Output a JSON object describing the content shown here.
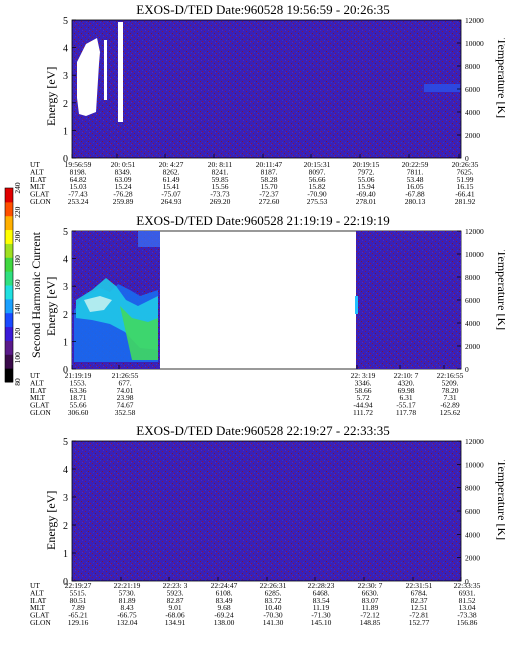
{
  "chart_data": {
    "type": "heatmap",
    "colorbar": {
      "label": "Second Harmonic Current",
      "ticks": [
        "80",
        "100",
        "120",
        "140",
        "160",
        "180",
        "200",
        "220",
        "240"
      ],
      "range": [
        80,
        240
      ],
      "colors": [
        "#000000",
        "#3a0a4a",
        "#5a1a8a",
        "#3a1ad8",
        "#1a4aff",
        "#1aa0ff",
        "#20e0e0",
        "#30e080",
        "#40d840",
        "#a0e020",
        "#ffff00",
        "#ffb000",
        "#ff5000",
        "#e00000"
      ]
    },
    "panels": [
      {
        "title": "EXOS-D/TED   Date:960528   19:56:59 - 20:26:35",
        "ylabel": "Energy [eV]",
        "ylabel_right": "Temperature [K]",
        "yticks": [
          "0",
          "1",
          "2",
          "3",
          "4",
          "5"
        ],
        "yticks_right": [
          "0",
          "2000",
          "4000",
          "6000",
          "8000",
          "10000",
          "12000"
        ],
        "ylim": [
          0,
          5
        ],
        "ylim_right": [
          0,
          12000
        ],
        "ephemeris_labels": [
          "UT",
          "ALT",
          "ILAT",
          "MLT",
          "GLAT",
          "GLON"
        ],
        "columns": [
          [
            "19:56:59",
            "8198.",
            "64.82",
            "15.03",
            "-77.43",
            "253.24"
          ],
          [
            "20: 0:51",
            "8349.",
            "63.09",
            "15.24",
            "-76.28",
            "259.89"
          ],
          [
            "20: 4:27",
            "8262.",
            "61.49",
            "15.41",
            "-75.07",
            "264.93"
          ],
          [
            "20: 8:11",
            "8241.",
            "59.85",
            "15.56",
            "-73.73",
            "269.20"
          ],
          [
            "20:11:47",
            "8187.",
            "58.28",
            "15.70",
            "-72.37",
            "272.60"
          ],
          [
            "20:15:31",
            "8097.",
            "56.66",
            "15.82",
            "-70.90",
            "275.53"
          ],
          [
            "20:19:15",
            "7972.",
            "55.06",
            "15.94",
            "-69.40",
            "278.01"
          ],
          [
            "20:22:59",
            "7811.",
            "53.48",
            "16.05",
            "-67.88",
            "280.13"
          ],
          [
            "20:26:35",
            "7625.",
            "51.99",
            "16.15",
            "-66.41",
            "281.92"
          ]
        ]
      },
      {
        "title": "EXOS-D/TED   Date:960528   21:19:19 - 22:19:19",
        "ylabel": "Energy [eV]",
        "ylabel_right": "Temperature [K]",
        "yticks": [
          "0",
          "1",
          "2",
          "3",
          "4",
          "5"
        ],
        "yticks_right": [
          "0",
          "2000",
          "4000",
          "6000",
          "8000",
          "10000",
          "12000"
        ],
        "ylim": [
          0,
          5
        ],
        "ylim_right": [
          0,
          12000
        ],
        "ephemeris_labels": [
          "UT",
          "ALT",
          "ILAT",
          "MLT",
          "GLAT",
          "GLON"
        ],
        "columns": [
          [
            "21:19:19",
            "1553.",
            "63.36",
            "18.71",
            "55.66",
            "306.60"
          ],
          [
            "21:26:55",
            "677.",
            "74.01",
            "23.98",
            "74.67",
            "352.58"
          ],
          [
            "22: 3:19",
            "3346.",
            "58.66",
            "5.72",
            "-44.94",
            "111.72"
          ],
          [
            "22:10: 7",
            "4320.",
            "69.98",
            "6.31",
            "-55.17",
            "117.78"
          ],
          [
            "22:16:55",
            "5209.",
            "78.20",
            "7.31",
            "-62.89",
            "125.62"
          ]
        ]
      },
      {
        "title": "EXOS-D/TED   Date:960528   22:19:27 - 22:33:35",
        "ylabel": "Energy [eV]",
        "ylabel_right": "Temperature [K]",
        "yticks": [
          "0",
          "1",
          "2",
          "3",
          "4",
          "5"
        ],
        "yticks_right": [
          "0",
          "2000",
          "4000",
          "6000",
          "8000",
          "10000",
          "12000"
        ],
        "ylim": [
          0,
          5
        ],
        "ylim_right": [
          0,
          12000
        ],
        "ephemeris_labels": [
          "UT",
          "ALT",
          "ILAT",
          "MLT",
          "GLAT",
          "GLON"
        ],
        "columns": [
          [
            "22:19:27",
            "5515.",
            "80.51",
            "7.89",
            "-65.21",
            "129.16"
          ],
          [
            "22:21:19",
            "5730.",
            "81.89",
            "8.43",
            "-66.75",
            "132.04"
          ],
          [
            "22:23: 3",
            "5923.",
            "82.87",
            "9.01",
            "-68.06",
            "134.91"
          ],
          [
            "22:24:47",
            "6108.",
            "83.49",
            "9.68",
            "-69.24",
            "138.00"
          ],
          [
            "22:26:31",
            "6285.",
            "83.72",
            "10.40",
            "-70.30",
            "141.30"
          ],
          [
            "22:28:23",
            "6468.",
            "83.54",
            "11.19",
            "-71.30",
            "145.10"
          ],
          [
            "22:30: 7",
            "6630.",
            "83.07",
            "11.89",
            "-72.12",
            "148.85"
          ],
          [
            "22:31:51",
            "6784.",
            "82.37",
            "12.51",
            "-72.81",
            "152.77"
          ],
          [
            "22:33:35",
            "6931.",
            "81.52",
            "13.04",
            "-73.38",
            "156.86"
          ]
        ]
      }
    ]
  }
}
